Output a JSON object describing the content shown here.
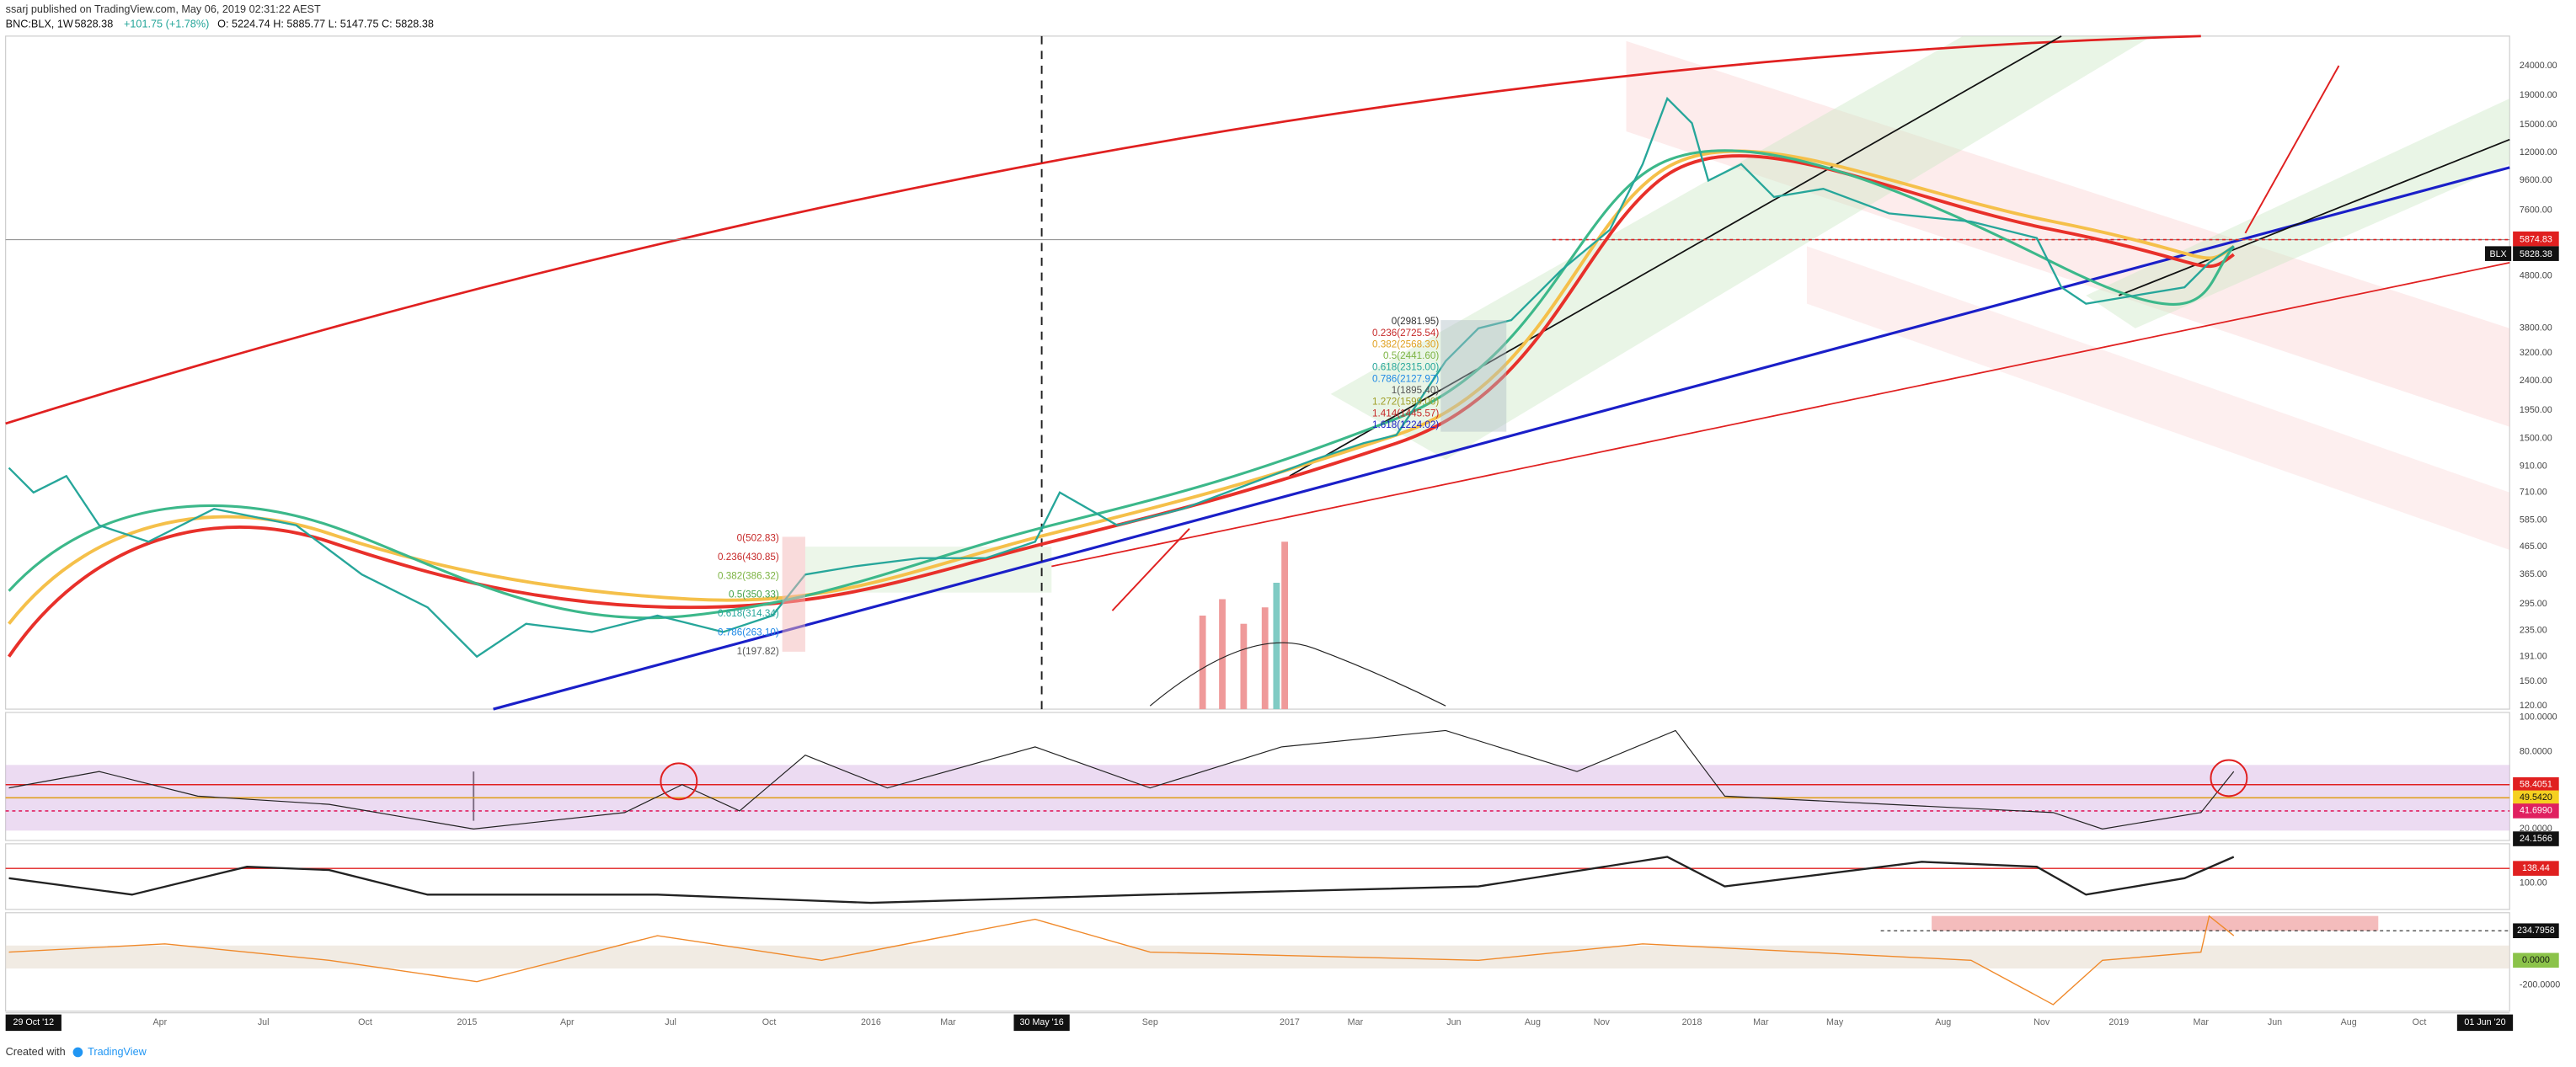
{
  "header": {
    "publisher": "ssarj published on TradingView.com, May 06, 2019 02:31:22 AEST",
    "symbol": "BNC:BLX, 1W",
    "last": "5828.38",
    "change": "+101.75 (+1.78%)",
    "ohlc": "O: 5224.74  H: 5885.77  L: 5147.75  C: 5828.38"
  },
  "price_axis": {
    "labels": [
      "24000.00",
      "19000.00",
      "15000.00",
      "12000.00",
      "9600.00",
      "7600.00",
      "4800.00",
      "3800.00",
      "3200.00",
      "2400.00",
      "1950.00",
      "1500.00",
      "910.00",
      "710.00",
      "585.00",
      "465.00",
      "365.00",
      "295.00",
      "235.00",
      "191.00",
      "150.00",
      "120.00"
    ],
    "alert_tag": "5874.83",
    "symbol_tag": "BLX",
    "price_tag": "5828.38"
  },
  "rsi_axis": {
    "labels": [
      "100.0000",
      "80.0000",
      "20.0000"
    ],
    "tags": [
      "58.4051",
      "49.5420",
      "41.6990",
      "24.1566"
    ]
  },
  "mid_axis": {
    "labels": [
      "100.00"
    ],
    "tag": "138.44"
  },
  "low_axis": {
    "labels": [
      "-200.0000"
    ],
    "tags": [
      "234.7958",
      "0.0000"
    ]
  },
  "time_axis": {
    "start": "29 Oct '12",
    "labels": [
      "Apr",
      "Jul",
      "Oct",
      "2015",
      "Apr",
      "Jul",
      "Oct",
      "2016",
      "Mar",
      "Sep",
      "2017",
      "Mar",
      "Jun",
      "Aug",
      "Nov",
      "2018",
      "Mar",
      "May",
      "Aug",
      "Nov",
      "2019",
      "Mar",
      "Jun",
      "Aug",
      "Oct"
    ],
    "marker": "30 May '16",
    "end": "01 Jun '20"
  },
  "fib_a": [
    "0(502.83)",
    "0.236(430.85)",
    "0.382(386.32)",
    "0.5(350.33)",
    "0.618(314.34)",
    "0.786(263.10)",
    "1(197.82)"
  ],
  "fib_b": [
    "0(2981.95)",
    "0.236(2725.54)",
    "0.382(2568.30)",
    "0.5(2441.60)",
    "0.618(2315.00)",
    "0.786(2127.97)",
    "1(1895.40)",
    "1.272(1599.00)",
    "1.414(1445.57)",
    "1.618(1224.02)"
  ],
  "footer": {
    "created": "Created with",
    "brand": "TradingView"
  }
}
